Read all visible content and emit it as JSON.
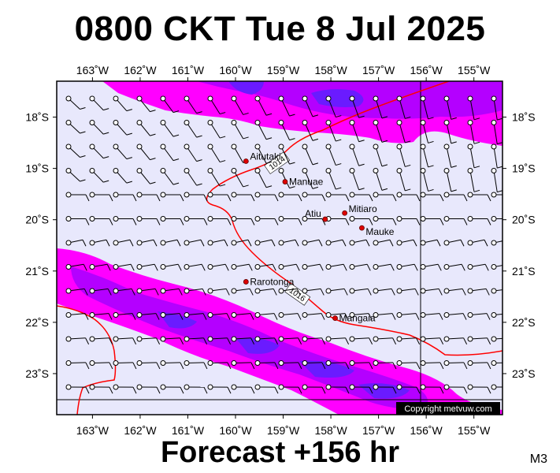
{
  "title": "0800 CKT Tue 8 Jul 2025",
  "footer": "Forecast +156 hr",
  "model_code": "M3",
  "copyright": "Copyright metvuw.com",
  "colors": {
    "background": "#e8e8fc",
    "rain_light": "#ff00ff",
    "rain_mid": "#b400ff",
    "rain_heavy": "#6a1bff",
    "isobar": "#ff0000",
    "place_marker": "#dd0000"
  },
  "map": {
    "lon_range": [
      -163.75,
      -154.4
    ],
    "lat_range": [
      -23.8,
      -17.3
    ],
    "lon_labels": [
      "163˚W",
      "162˚W",
      "161˚W",
      "160˚W",
      "159˚W",
      "158˚W",
      "157˚W",
      "156˚W",
      "155˚W"
    ],
    "lat_labels": [
      "18˚S",
      "19˚S",
      "20˚S",
      "21˚S",
      "22˚S",
      "23˚S"
    ],
    "places": [
      {
        "name": "Aitutaki",
        "lon": -159.78,
        "lat": -18.86
      },
      {
        "name": "Manuae",
        "lon": -158.96,
        "lat": -19.26
      },
      {
        "name": "Mitiaro",
        "lon": -157.71,
        "lat": -19.87
      },
      {
        "name": "Atiu",
        "lon": -158.12,
        "lat": -19.99
      },
      {
        "name": "Mauke",
        "lon": -157.35,
        "lat": -20.16
      },
      {
        "name": "Rarotonga",
        "lon": -159.78,
        "lat": -21.21
      },
      {
        "name": "Mangaia",
        "lon": -157.91,
        "lat": -21.92
      }
    ],
    "isobars": [
      {
        "label": "1014"
      },
      {
        "label": "1016"
      }
    ]
  }
}
